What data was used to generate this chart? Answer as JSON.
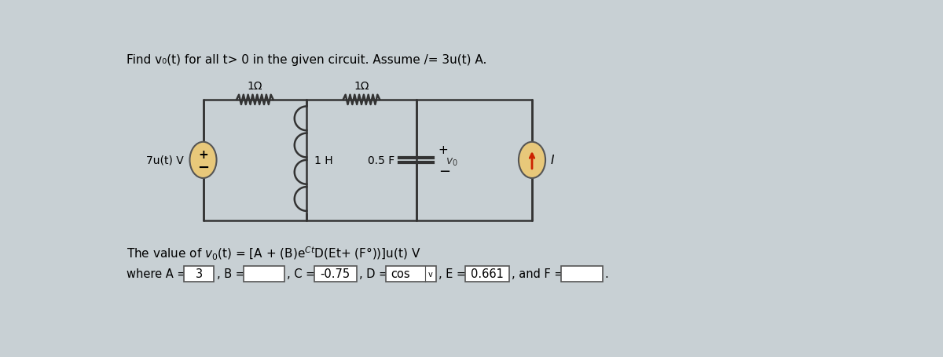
{
  "title_text": "Find v₀(t) for all t> 0 in the given circuit. Assume /= 3u(t) A.",
  "bg_color": "#c8d0d4",
  "circuit_bg": "#c8d4d8",
  "res1_label": "1Ω",
  "res2_label": "1Ω",
  "ind_label": "1 H",
  "cap_label": "0.5 F",
  "vsource_label": "7u(t) V",
  "isource_label": "I",
  "v0_label": "v₀",
  "formula_text": "The value of v₀(t) = [A + (B)e",
  "formula_sup": "Ct",
  "formula_rest": "D(Et+ (F°))]u(t) V",
  "where_text": "where A =",
  "A_value": "3",
  "C_value": "-0.75",
  "D_value": "cos",
  "E_value": "0.661"
}
